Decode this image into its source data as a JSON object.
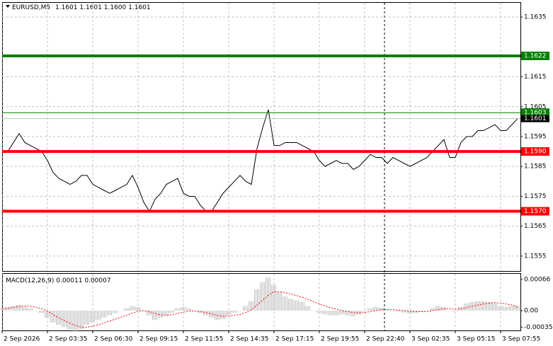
{
  "chart_data": [
    {
      "type": "line",
      "title": "EURUSD,M5",
      "ohlc": [
        "1.1601",
        "1.1601",
        "1.1600",
        "1.1601"
      ],
      "categories": [
        "2 Sep 2026",
        null,
        null,
        null,
        null,
        null,
        null,
        null,
        "2 Sep 03:35",
        null,
        null,
        null,
        null,
        null,
        null,
        null,
        "2 Sep 06:30",
        null,
        null,
        null,
        null,
        null,
        null,
        null,
        "2 Sep 09:15",
        null,
        null,
        null,
        null,
        null,
        null,
        null,
        "2 Sep 11:55",
        null,
        null,
        null,
        null,
        null,
        null,
        null,
        "2 Sep 14:35",
        null,
        null,
        null,
        null,
        null,
        null,
        null,
        "2 Sep 17:15",
        null,
        null,
        null,
        null,
        null,
        null,
        null,
        "2 Sep 19:55",
        null,
        null,
        null,
        null,
        null,
        null,
        null,
        "2 Sep 22:40",
        null,
        null,
        null,
        null,
        null,
        null,
        null,
        "3 Sep 02:35",
        null,
        null,
        null,
        null,
        null,
        null,
        null,
        "3 Sep 05:15",
        null,
        null,
        null,
        null,
        null,
        null,
        null,
        "3 Sep 07:55",
        null,
        null,
        null
      ],
      "series": [
        {
          "name": "EURUSD",
          "color": "#000000",
          "values": [
            1.159,
            1.159,
            1.1593,
            1.1596,
            1.1593,
            1.1592,
            1.1591,
            1.159,
            1.1587,
            1.1583,
            1.1581,
            1.158,
            1.1579,
            1.158,
            1.1582,
            1.1582,
            1.1579,
            1.1578,
            1.1577,
            1.1576,
            1.1577,
            1.1578,
            1.1579,
            1.1582,
            1.1578,
            1.1573,
            1.157,
            1.1574,
            1.1576,
            1.1579,
            1.158,
            1.1581,
            1.1576,
            1.1575,
            1.1575,
            1.1572,
            1.157,
            1.157,
            1.1573,
            1.1576,
            1.1578,
            1.158,
            1.1582,
            1.158,
            1.1579,
            1.1591,
            1.1598,
            1.1604,
            1.1592,
            1.1592,
            1.1593,
            1.1593,
            1.1593,
            1.1592,
            1.1591,
            1.159,
            1.1587,
            1.1585,
            1.1586,
            1.1587,
            1.1586,
            1.1586,
            1.1584,
            1.1585,
            1.1587,
            1.1589,
            1.1588,
            1.1588,
            1.1586,
            1.1588,
            1.1587,
            1.1586,
            1.1585,
            1.1586,
            1.1587,
            1.1588,
            1.159,
            1.1592,
            1.1594,
            1.1588,
            1.1588,
            1.1593,
            1.1595,
            1.1595,
            1.1597,
            1.1597,
            1.1598,
            1.1599,
            1.1597,
            1.1597,
            1.1599,
            1.1601
          ]
        }
      ],
      "ylim": [
        1.155,
        1.164
      ],
      "yticks": [
        1.1635,
        1.1615,
        1.1605,
        1.1595,
        1.1585,
        1.1575,
        1.1565,
        1.1555
      ],
      "grid": true,
      "levels": [
        {
          "value": 1.1622,
          "color": "#008000",
          "thick": true
        },
        {
          "value": 1.1603,
          "color": "#008000",
          "thick": false
        },
        {
          "value": {
            "value": 1.159,
            "label": "1.1590"
          },
          "color": "#ff0000",
          "thick": true
        },
        {
          "value": {
            "value": 1.157,
            "label": "1.1570"
          },
          "color": "#ff0000",
          "thick": true
        }
      ],
      "current_price": 1.1601
    },
    {
      "type": "bar",
      "title": "MACD(12,26,9)",
      "series": [
        {
          "name": "MACD",
          "color": "#c0c0c0",
          "values": [
            5e-05,
            8e-05,
            0.0001,
            0.00012,
            8e-05,
            5e-05,
            0,
            -5e-05,
            -0.00015,
            -0.00025,
            -0.0003,
            -0.00035,
            -0.0004,
            -0.00045,
            -0.0004,
            -0.0003,
            -0.00025,
            -0.0002,
            -0.00015,
            -0.0001,
            -5e-05,
            0,
            5e-05,
            0.0001,
            8e-05,
            0,
            -0.0001,
            -0.0002,
            -0.00015,
            -0.0001,
            -5e-05,
            5e-05,
            8e-05,
            5e-05,
            0,
            -5e-05,
            -0.0001,
            -0.00015,
            -0.0002,
            -0.00018,
            -0.0001,
            -5e-05,
            0,
            0.0001,
            0.0002,
            0.00045,
            0.0006,
            0.0007,
            0.00055,
            0.0004,
            0.0003,
            0.00025,
            0.00022,
            0.00018,
            0.0001,
            0,
            -5e-05,
            -8e-05,
            -0.0001,
            -0.0001,
            -8e-05,
            -0.0001,
            -0.00012,
            -8e-05,
            -2e-05,
            5e-05,
            8e-05,
            6e-05,
            3e-05,
            0,
            -2e-05,
            -4e-05,
            -6e-05,
            -5e-05,
            -3e-05,
            0,
            5e-05,
            0.0001,
            8e-05,
            0,
            -2e-05,
            8e-05,
            0.00015,
            0.00018,
            0.0002,
            0.0002,
            0.00018,
            0.00016,
            0.0001,
            8e-05,
            0.0001,
            0.00011
          ]
        },
        {
          "name": "Signal",
          "color": "#ff0000",
          "values": [
            3e-05,
            5e-05,
            7e-05,
            9e-05,
            0.0001,
            9e-05,
            7e-05,
            4e-05,
            -1e-05,
            -8e-05,
            -0.00015,
            -0.00021,
            -0.00027,
            -0.00032,
            -0.00035,
            -0.00035,
            -0.00033,
            -0.0003,
            -0.00026,
            -0.00022,
            -0.00018,
            -0.00014,
            -0.0001,
            -5e-05,
            -1e-05,
            0,
            -2e-05,
            -6e-05,
            -9e-05,
            -0.0001,
            -9e-05,
            -6e-05,
            -3e-05,
            -1e-05,
            -1e-05,
            -2e-05,
            -4e-05,
            -7e-05,
            -0.0001,
            -0.00012,
            -0.00012,
            -0.0001,
            -8e-05,
            -4e-05,
            2e-05,
            0.00012,
            0.00022,
            0.00033,
            0.0004,
            0.0004,
            0.00038,
            0.00035,
            0.00032,
            0.00028,
            0.00024,
            0.00019,
            0.00014,
            0.0001,
            6e-05,
            3e-05,
            0,
            -2e-05,
            -4e-05,
            -5e-05,
            -4e-05,
            -2e-05,
            0,
            2e-05,
            2e-05,
            2e-05,
            1e-05,
            0,
            -1e-05,
            -2e-05,
            -2e-05,
            -2e-05,
            0,
            2e-05,
            4e-05,
            4e-05,
            3e-05,
            4e-05,
            6e-05,
            9e-05,
            0.00012,
            0.00014,
            0.00016,
            0.00017,
            0.00016,
            0.00014,
            0.00012,
            7e-05
          ]
        }
      ],
      "ylim": [
        -0.00042,
        0.00078
      ],
      "yticks": [
        0.00066,
        {
          "value": 0,
          "label": "0.00"
        },
        -0.00035
      ]
    }
  ]
}
